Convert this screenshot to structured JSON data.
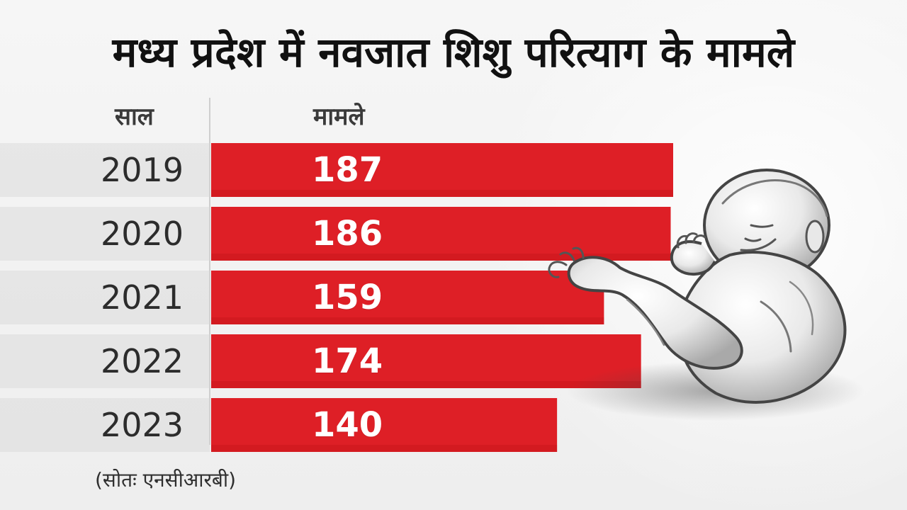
{
  "title": "मध्य प्रदेश में नवजात शिशु परित्याग के मामले",
  "headers": {
    "year": "साल",
    "value": "मामले"
  },
  "source": "(सोतः एनसीआरबी)",
  "colors": {
    "bar": "#de1f26",
    "bar_dark": "#bf1118",
    "divider": "#cfcfcf"
  },
  "chart_data": {
    "type": "bar",
    "title": "मध्य प्रदेश में नवजात शिशु परित्याग के मामले",
    "xlabel": "साल",
    "ylabel": "मामले",
    "categories": [
      "2019",
      "2020",
      "2021",
      "2022",
      "2023"
    ],
    "values": [
      187,
      186,
      159,
      174,
      140
    ],
    "ylim": [
      0,
      187
    ],
    "grid": false,
    "legend": "none"
  },
  "illustration": {
    "icon": "sleeping-newborn-baby"
  }
}
